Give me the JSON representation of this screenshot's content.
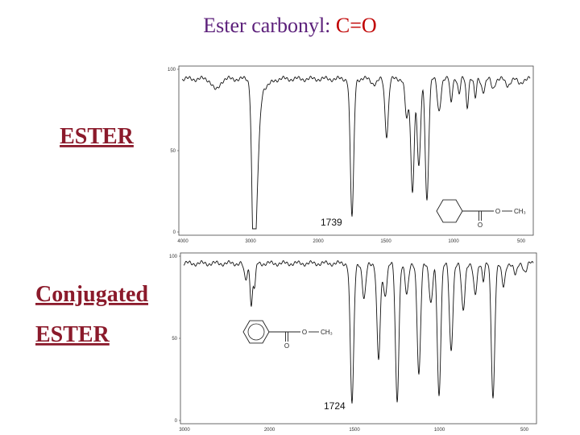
{
  "header": {
    "title": "Ester carbonyl:",
    "title_highlight": "C=O"
  },
  "panels": [
    {
      "label_lines": [
        "ESTER"
      ],
      "peak_label": "1739",
      "y_ticks": [
        "100",
        "50",
        "0"
      ],
      "x_ticks": [
        "4000",
        "3000",
        "2000",
        "1500",
        "1000",
        "500"
      ],
      "structure": {
        "carbonyl_o": "O",
        "ester_o": "O",
        "methyl": "CH₃"
      }
    },
    {
      "label_lines": [
        "Conjugated",
        "ESTER"
      ],
      "peak_label": "1724",
      "y_ticks": [
        "100",
        "50",
        "0"
      ],
      "x_ticks": [
        "3000",
        "2000",
        "1500",
        "1000",
        "500"
      ],
      "structure": {
        "carbonyl_o": "O",
        "ester_o": "O",
        "methyl": "CH₃"
      }
    }
  ]
}
